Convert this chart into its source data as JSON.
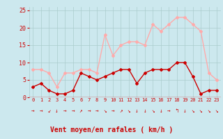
{
  "hours": [
    0,
    1,
    2,
    3,
    4,
    5,
    6,
    7,
    8,
    9,
    10,
    11,
    12,
    13,
    14,
    15,
    16,
    17,
    18,
    19,
    20,
    21,
    22,
    23
  ],
  "mean_wind": [
    3,
    4,
    2,
    1,
    1,
    2,
    7,
    6,
    5,
    6,
    7,
    8,
    8,
    4,
    7,
    8,
    8,
    8,
    10,
    10,
    6,
    1,
    2,
    2
  ],
  "gusts": [
    8,
    8,
    7,
    3,
    7,
    7,
    8,
    8,
    7,
    18,
    12,
    15,
    16,
    16,
    15,
    21,
    19,
    21,
    23,
    23,
    21,
    19,
    7,
    5
  ],
  "mean_color": "#cc0000",
  "gust_color": "#ffaaaa",
  "bg_color": "#cce8ee",
  "grid_color": "#aacccc",
  "xlabel": "Vent moyen/en rafales ( km/h )",
  "xlabel_color": "#cc0000",
  "arrow_symbols": [
    "→",
    "→",
    "↙",
    "↓",
    "→",
    "→",
    "↗",
    "→",
    "→",
    "↘",
    "→",
    "↗",
    "↘",
    "↓",
    "↓",
    "↘",
    "↓",
    "→",
    "↰",
    "↓",
    "↘",
    "↘",
    "↘",
    "↘"
  ],
  "ylim": [
    0,
    26
  ],
  "yticks": [
    0,
    5,
    10,
    15,
    20,
    25
  ],
  "xlim": [
    -0.5,
    23.5
  ],
  "marker": "D",
  "markersize": 2,
  "linewidth": 1.0
}
